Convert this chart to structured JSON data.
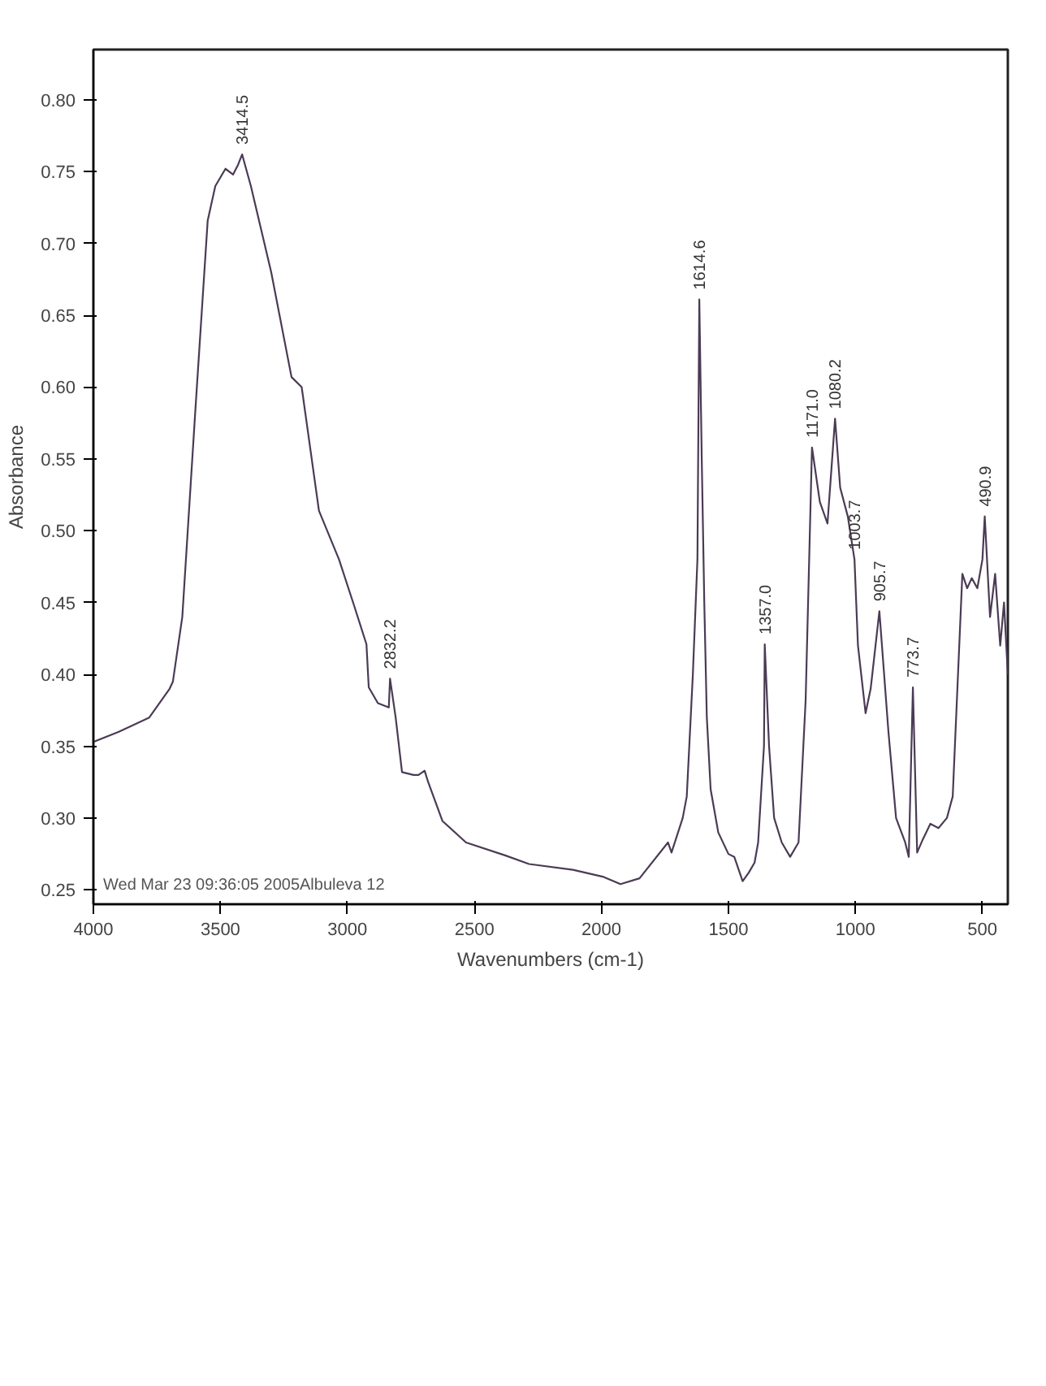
{
  "chart_data": {
    "type": "line",
    "xlabel": "Wavenumbers (cm-1)",
    "ylabel": "Absorbance",
    "xlim": [
      4000,
      400
    ],
    "ylim": [
      0.24,
      0.835
    ],
    "xticks": [
      500,
      1000,
      1500,
      2000,
      2500,
      3000,
      3500,
      4000
    ],
    "yticks": [
      {
        "value": 0.25,
        "label": "0.25"
      },
      {
        "value": 0.3,
        "label": "0.30"
      },
      {
        "value": 0.35,
        "label": "0.35"
      },
      {
        "value": 0.4,
        "label": "0.40"
      },
      {
        "value": 0.45,
        "label": "0.45"
      },
      {
        "value": 0.5,
        "label": "0.50"
      },
      {
        "value": 0.55,
        "label": "0.55"
      },
      {
        "value": 0.6,
        "label": "0.60"
      },
      {
        "value": 0.65,
        "label": "0.65"
      },
      {
        "value": 0.7,
        "label": "0.70"
      },
      {
        "value": 0.75,
        "label": "0.75"
      },
      {
        "value": 0.8,
        "label": "0.80"
      }
    ],
    "grid": false,
    "series": [
      {
        "color": "#4b3b55",
        "x": [
          4000,
          3900,
          3780,
          3700,
          3687,
          3650,
          3600,
          3550,
          3520,
          3480,
          3450,
          3430,
          3414.5,
          3380,
          3300,
          3220,
          3180,
          3112,
          3033,
          2972,
          2925,
          2916,
          2880,
          2837,
          2832.2,
          2810,
          2785,
          2740,
          2720,
          2696,
          2682,
          2626,
          2533,
          2379,
          2285,
          2112,
          1991,
          1925,
          1850,
          1738,
          1724,
          1680,
          1664,
          1640,
          1622,
          1614.6,
          1605,
          1595,
          1585,
          1570,
          1540,
          1500,
          1477,
          1444,
          1420,
          1397,
          1383,
          1360,
          1357.0,
          1340,
          1320,
          1290,
          1257,
          1224,
          1196,
          1171.0,
          1140,
          1110,
          1080.2,
          1060,
          1030,
          1003.7,
          990,
          960,
          940,
          905.7,
          870,
          840,
          804,
          790,
          773.7,
          757,
          735,
          705,
          673,
          640,
          617,
          579,
          560,
          542,
          520,
          500,
          490.9,
          470,
          450,
          430,
          415,
          400
        ],
        "values": [
          0.353,
          0.36,
          0.37,
          0.39,
          0.395,
          0.44,
          0.58,
          0.716,
          0.74,
          0.752,
          0.748,
          0.755,
          0.762,
          0.74,
          0.68,
          0.607,
          0.6,
          0.514,
          0.48,
          0.447,
          0.421,
          0.391,
          0.38,
          0.377,
          0.397,
          0.37,
          0.332,
          0.33,
          0.33,
          0.333,
          0.325,
          0.298,
          0.283,
          0.274,
          0.268,
          0.264,
          0.259,
          0.254,
          0.258,
          0.283,
          0.276,
          0.3,
          0.315,
          0.4,
          0.48,
          0.661,
          0.55,
          0.45,
          0.37,
          0.32,
          0.29,
          0.275,
          0.273,
          0.256,
          0.262,
          0.269,
          0.283,
          0.35,
          0.421,
          0.35,
          0.3,
          0.283,
          0.273,
          0.283,
          0.382,
          0.558,
          0.52,
          0.505,
          0.578,
          0.53,
          0.51,
          0.48,
          0.42,
          0.373,
          0.39,
          0.444,
          0.36,
          0.3,
          0.283,
          0.273,
          0.391,
          0.276,
          0.285,
          0.296,
          0.293,
          0.3,
          0.315,
          0.47,
          0.46,
          0.467,
          0.46,
          0.48,
          0.51,
          0.44,
          0.47,
          0.42,
          0.45,
          0.4
        ]
      }
    ],
    "annotations": [
      {
        "text": "3414.5",
        "x": 3414.5,
        "y": 0.762
      },
      {
        "text": "2832.2",
        "x": 2832.2,
        "y": 0.397
      },
      {
        "text": "1614.6",
        "x": 1614.6,
        "y": 0.661
      },
      {
        "text": "1357.0",
        "x": 1357.0,
        "y": 0.421
      },
      {
        "text": "1171.0",
        "x": 1171.0,
        "y": 0.558
      },
      {
        "text": "1080.2",
        "x": 1080.2,
        "y": 0.578
      },
      {
        "text": "1003.7",
        "x": 1003.7,
        "y": 0.48
      },
      {
        "text": "905.7",
        "x": 905.7,
        "y": 0.444
      },
      {
        "text": "773.7",
        "x": 773.7,
        "y": 0.391
      },
      {
        "text": "490.9",
        "x": 490.9,
        "y": 0.51
      },
      "Wed Mar 23 09:36:05 2005Albuleva 12"
    ]
  }
}
